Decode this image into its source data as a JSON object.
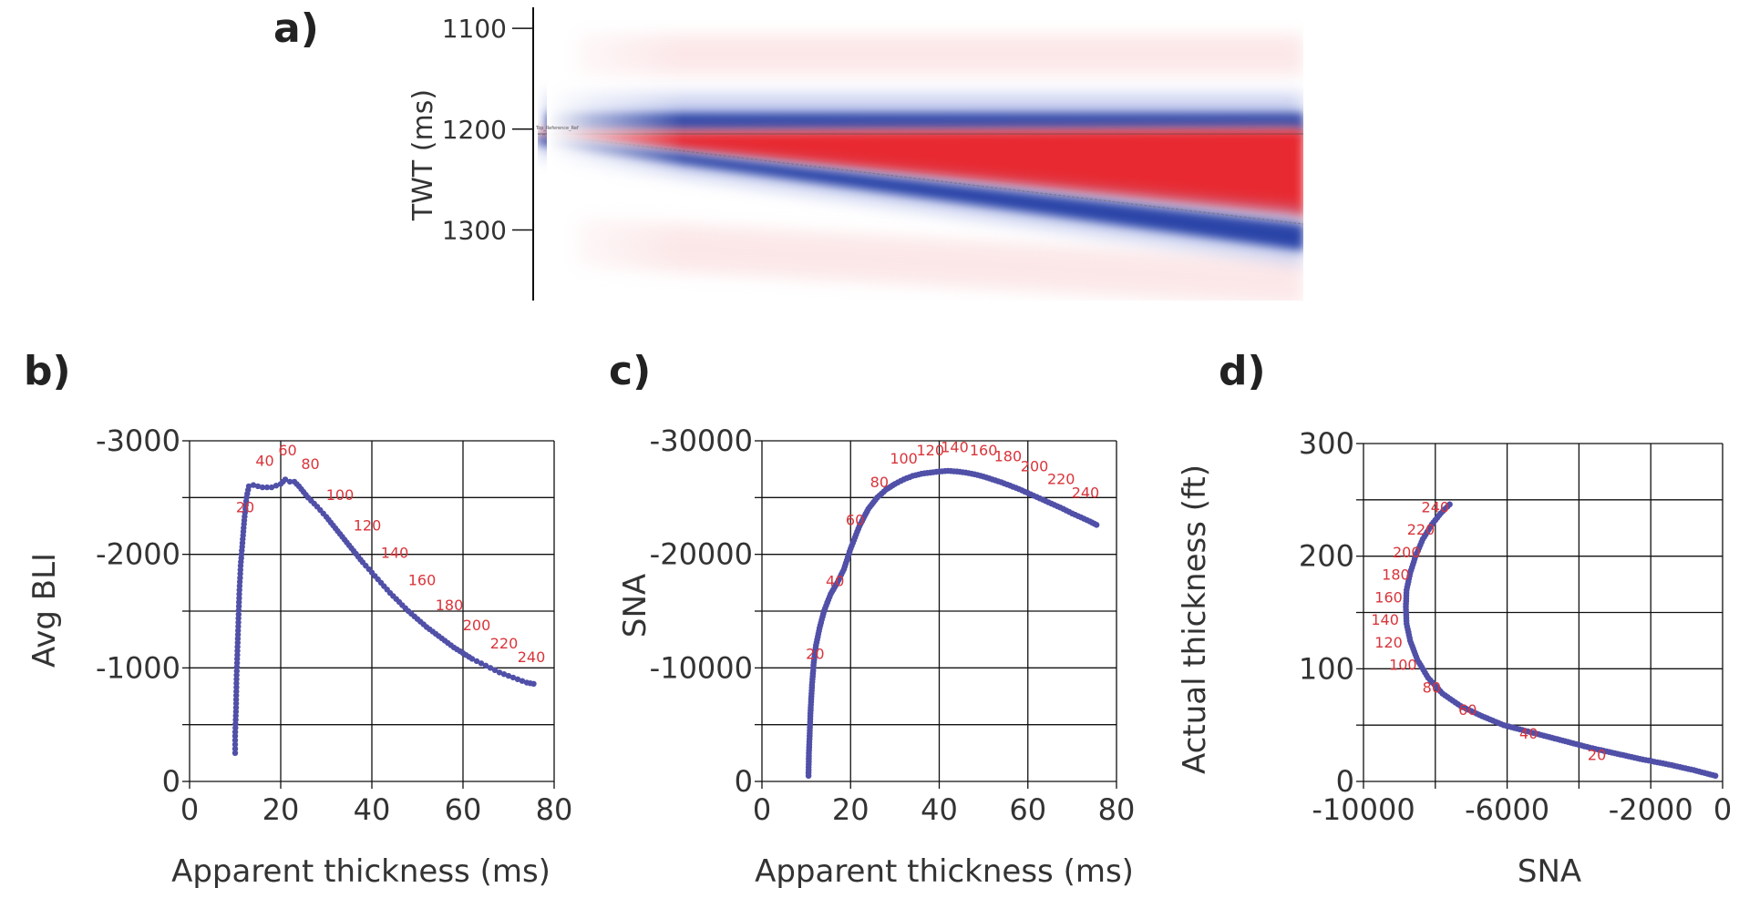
{
  "figure": {
    "panel_letters": [
      "a)",
      "b)",
      "c)",
      "d)"
    ]
  },
  "chart_data": [
    {
      "id": "a",
      "type": "heatmap",
      "title": "",
      "xlabel": "",
      "ylabel": "TWT (ms)",
      "yticks": [
        1100,
        1200,
        1300
      ],
      "ylim": [
        1090,
        1370
      ],
      "horizon_label": "Top_Reference_Ref",
      "top_reflector_twt": 1206,
      "base_reflector_twt_start": 1206,
      "base_reflector_twt_end": 1298,
      "colors": {
        "positive": "#e8242a",
        "negative": "#2a45a8"
      }
    },
    {
      "id": "b",
      "type": "scatter",
      "xlabel": "Apparent thickness (ms)",
      "ylabel": "Avg BLI",
      "xlim": [
        0,
        80
      ],
      "ylim": [
        0,
        -3000
      ],
      "xticks": [
        "0",
        "20",
        "40",
        "60",
        "80"
      ],
      "yticks": [
        "-3000",
        "-2000",
        "-1000",
        "0"
      ],
      "series_color": "#5050a8",
      "x": [
        10,
        10,
        10.2,
        10.3,
        10.5,
        10.7,
        10.9,
        11.2,
        11.6,
        12,
        12.5,
        13,
        14,
        16,
        18,
        20,
        21,
        22,
        23,
        24,
        26,
        28,
        30,
        32,
        34,
        36,
        38,
        40,
        42,
        44,
        46,
        48,
        50,
        52,
        54,
        56,
        58,
        60,
        62,
        64,
        66,
        68,
        70,
        72,
        74,
        75.5
      ],
      "y": [
        -250,
        -400,
        -650,
        -900,
        -1150,
        -1400,
        -1650,
        -1900,
        -2100,
        -2300,
        -2500,
        -2600,
        -2610,
        -2590,
        -2590,
        -2620,
        -2660,
        -2640,
        -2640,
        -2600,
        -2500,
        -2420,
        -2330,
        -2230,
        -2130,
        -2030,
        -1930,
        -1840,
        -1750,
        -1660,
        -1580,
        -1500,
        -1430,
        -1360,
        -1300,
        -1240,
        -1180,
        -1130,
        -1080,
        -1040,
        -1000,
        -960,
        -930,
        -900,
        -870,
        -860
      ],
      "point_labels": [
        {
          "text": "20",
          "x": 12.2,
          "y": -2370
        },
        {
          "text": "40",
          "x": 16.5,
          "y": -2780
        },
        {
          "text": "60",
          "x": 21.5,
          "y": -2870
        },
        {
          "text": "80",
          "x": 26.5,
          "y": -2750
        },
        {
          "text": "100",
          "x": 33,
          "y": -2480
        },
        {
          "text": "120",
          "x": 39,
          "y": -2210
        },
        {
          "text": "140",
          "x": 45,
          "y": -1970
        },
        {
          "text": "160",
          "x": 51,
          "y": -1730
        },
        {
          "text": "180",
          "x": 57,
          "y": -1510
        },
        {
          "text": "200",
          "x": 63,
          "y": -1330
        },
        {
          "text": "220",
          "x": 69,
          "y": -1170
        },
        {
          "text": "240",
          "x": 75,
          "y": -1050
        }
      ]
    },
    {
      "id": "c",
      "type": "scatter",
      "xlabel": "Apparent thickness (ms)",
      "ylabel": "SNA",
      "xlim": [
        0,
        80
      ],
      "ylim": [
        0,
        -30000
      ],
      "xticks": [
        "0",
        "20",
        "40",
        "60",
        "80"
      ],
      "yticks": [
        "-30000",
        "-20000",
        "-10000",
        "0"
      ],
      "series_color": "#5050a8",
      "x": [
        10.5,
        10.6,
        10.8,
        11,
        11.3,
        11.7,
        12.2,
        13,
        14,
        15.5,
        17,
        18.5,
        20,
        22,
        24,
        26,
        28,
        30,
        32,
        34,
        36,
        38,
        40,
        42,
        44,
        46,
        48,
        50,
        52,
        54,
        56,
        58,
        60,
        62,
        64,
        66,
        68,
        70,
        72,
        74,
        75.5
      ],
      "y": [
        -500,
        -2500,
        -4500,
        -6500,
        -8500,
        -10500,
        -12000,
        -13500,
        -15000,
        -16500,
        -17500,
        -18700,
        -20500,
        -22500,
        -24000,
        -25000,
        -25700,
        -26200,
        -26600,
        -26900,
        -27100,
        -27200,
        -27300,
        -27350,
        -27300,
        -27200,
        -27050,
        -26850,
        -26600,
        -26350,
        -26050,
        -25750,
        -25400,
        -25050,
        -24700,
        -24350,
        -24000,
        -23600,
        -23250,
        -22900,
        -22600
      ],
      "point_labels": [
        {
          "text": "20",
          "x": 12,
          "y": -10800
        },
        {
          "text": "40",
          "x": 16.5,
          "y": -17200
        },
        {
          "text": "60",
          "x": 21,
          "y": -22600
        },
        {
          "text": "80",
          "x": 26.5,
          "y": -25900
        },
        {
          "text": "100",
          "x": 32,
          "y": -28000
        },
        {
          "text": "120",
          "x": 38,
          "y": -28700
        },
        {
          "text": "140",
          "x": 43.5,
          "y": -29000
        },
        {
          "text": "160",
          "x": 50,
          "y": -28700
        },
        {
          "text": "180",
          "x": 55.5,
          "y": -28200
        },
        {
          "text": "200",
          "x": 61.5,
          "y": -27300
        },
        {
          "text": "220",
          "x": 67.5,
          "y": -26200
        },
        {
          "text": "240",
          "x": 73,
          "y": -25000
        }
      ]
    },
    {
      "id": "d",
      "type": "scatter",
      "xlabel": "SNA",
      "ylabel": "Actual thickness (ft)",
      "xlim": [
        -10000,
        0
      ],
      "ylim": [
        0,
        300
      ],
      "xticks": [
        "-10000",
        "-6000",
        "-2000",
        "0"
      ],
      "xtick_values": [
        -10000,
        -6000,
        -2000,
        0
      ],
      "yticks": [
        "300",
        "200",
        "100",
        "0"
      ],
      "ytick_values": [
        300,
        200,
        100,
        0
      ],
      "series_color": "#5050a8",
      "x": [
        -200,
        -800,
        -1500,
        -2300,
        -3000,
        -3700,
        -4300,
        -4900,
        -5500,
        -6100,
        -6700,
        -7300,
        -7800,
        -8200,
        -8500,
        -8700,
        -8800,
        -8820,
        -8800,
        -8700,
        -8550,
        -8350,
        -8100,
        -7850,
        -7600
      ],
      "y": [
        5,
        10,
        15,
        20,
        25,
        30,
        35,
        40,
        45,
        50,
        58,
        67,
        78,
        92,
        108,
        125,
        140,
        155,
        170,
        185,
        200,
        215,
        228,
        238,
        246
      ],
      "point_labels": [
        {
          "text": "20",
          "x": -3500,
          "y": 19
        },
        {
          "text": "40",
          "x": -5400,
          "y": 38
        },
        {
          "text": "60",
          "x": -7100,
          "y": 59
        },
        {
          "text": "80",
          "x": -8100,
          "y": 79
        },
        {
          "text": "100",
          "x": -8900,
          "y": 99
        },
        {
          "text": "120",
          "x": -9300,
          "y": 119
        },
        {
          "text": "140",
          "x": -9400,
          "y": 139
        },
        {
          "text": "160",
          "x": -9300,
          "y": 159
        },
        {
          "text": "180",
          "x": -9100,
          "y": 179
        },
        {
          "text": "200",
          "x": -8800,
          "y": 199
        },
        {
          "text": "220",
          "x": -8400,
          "y": 219
        },
        {
          "text": "240",
          "x": -8000,
          "y": 239
        }
      ]
    }
  ]
}
